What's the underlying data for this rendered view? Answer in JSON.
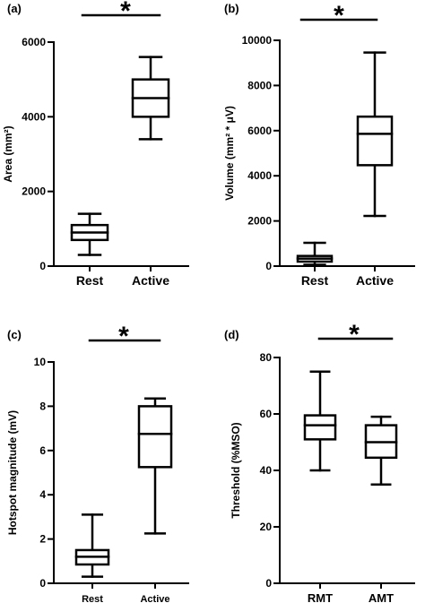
{
  "chart_data": [
    {
      "type": "box",
      "panel": "(a)",
      "ylabel": "Area (mm²)",
      "ylim": [
        0,
        6000
      ],
      "yticks": [
        "0",
        "2000",
        "4000",
        "6000"
      ],
      "categories": [
        "Rest",
        "Active"
      ],
      "boxes": [
        {
          "min": 300,
          "q1": 700,
          "median": 900,
          "q3": 1100,
          "max": 1400
        },
        {
          "min": 3400,
          "q1": 4000,
          "median": 4500,
          "q3": 5000,
          "max": 5600
        }
      ],
      "significance": "*"
    },
    {
      "type": "box",
      "panel": "(b)",
      "ylabel": "Volume (mm² * μV)",
      "ylim": [
        0,
        10000
      ],
      "yticks": [
        "0",
        "2000",
        "4000",
        "6000",
        "8000",
        "10000"
      ],
      "categories": [
        "Rest",
        "Active"
      ],
      "boxes": [
        {
          "min": 60,
          "q1": 200,
          "median": 330,
          "q3": 450,
          "max": 1030
        },
        {
          "min": 2220,
          "q1": 4470,
          "median": 5860,
          "q3": 6620,
          "max": 9460
        }
      ],
      "significance": "*"
    },
    {
      "type": "box",
      "panel": "(c)",
      "ylabel": "Hotspot magnitude (mV)",
      "ylim": [
        0,
        10
      ],
      "yticks": [
        "0",
        "2",
        "4",
        "6",
        "8",
        "10"
      ],
      "categories": [
        "Rest",
        "Active"
      ],
      "boxes": [
        {
          "min": 0.3,
          "q1": 0.85,
          "median": 1.2,
          "q3": 1.5,
          "max": 3.1
        },
        {
          "min": 2.25,
          "q1": 5.25,
          "median": 6.75,
          "q3": 8.0,
          "max": 8.35
        }
      ],
      "significance": "*"
    },
    {
      "type": "box",
      "panel": "(d)",
      "ylabel": "Threshold (%MSO)",
      "ylim": [
        0,
        80
      ],
      "yticks": [
        "0",
        "20",
        "40",
        "60",
        "80"
      ],
      "categories": [
        "RMT",
        "AMT"
      ],
      "boxes": [
        {
          "min": 40,
          "q1": 51,
          "median": 56,
          "q3": 59.5,
          "max": 75
        },
        {
          "min": 35,
          "q1": 44.5,
          "median": 50,
          "q3": 56,
          "max": 59
        }
      ],
      "significance": "*"
    }
  ]
}
